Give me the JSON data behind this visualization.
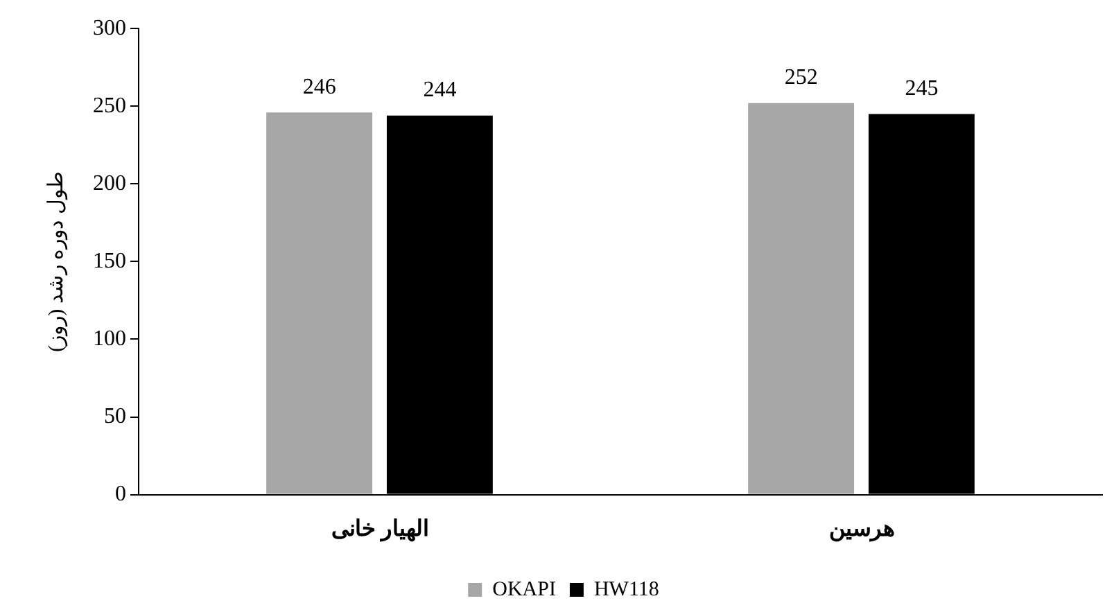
{
  "chart_data": {
    "type": "bar",
    "ylabel": "طول دوره رشد (روز)",
    "categories": [
      "الهیار خانی",
      "هرسین"
    ],
    "series": [
      {
        "name": "OKAPI",
        "color": "#a6a6a6",
        "values": [
          246,
          252
        ]
      },
      {
        "name": "HW118",
        "color": "#000000",
        "values": [
          244,
          245
        ]
      }
    ],
    "ylim": [
      0,
      300
    ],
    "yticks": [
      0,
      50,
      100,
      150,
      200,
      250,
      300
    ],
    "grid": false,
    "legend": "bottom",
    "data_labels": true
  }
}
